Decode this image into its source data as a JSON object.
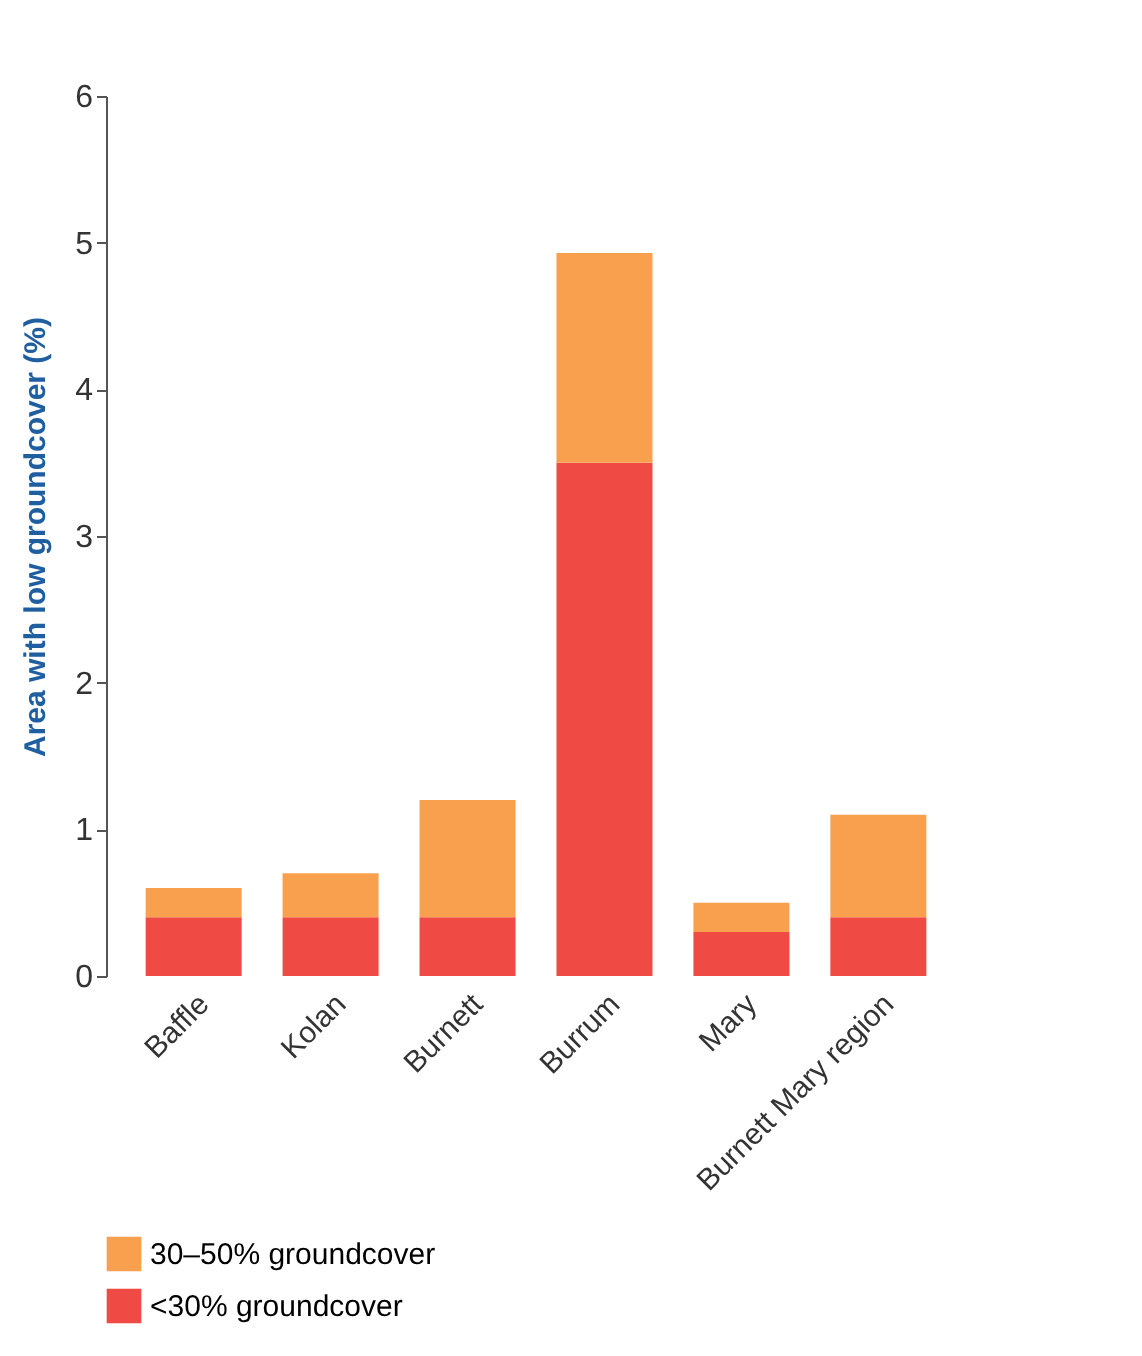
{
  "chart_data": {
    "type": "bar",
    "stacked": true,
    "ylabel": "Area with low groundcover (%)",
    "categories": [
      "Baffle",
      "Kolan",
      "Burnett",
      "Burrum",
      "Mary",
      "Burnett Mary region"
    ],
    "series": [
      {
        "name": "<30% groundcover",
        "color": "#f04a44",
        "values": [
          0.4,
          0.4,
          0.4,
          3.5,
          0.3,
          0.4
        ]
      },
      {
        "name": "30–50% groundcover",
        "color": "#f9a04e",
        "values": [
          0.2,
          0.3,
          0.8,
          1.43,
          0.2,
          0.7
        ]
      }
    ],
    "ylim": [
      0,
      6
    ],
    "yticks": [
      0,
      1,
      2,
      3,
      4,
      5,
      6
    ],
    "grid": false,
    "legend": "bottom left"
  }
}
